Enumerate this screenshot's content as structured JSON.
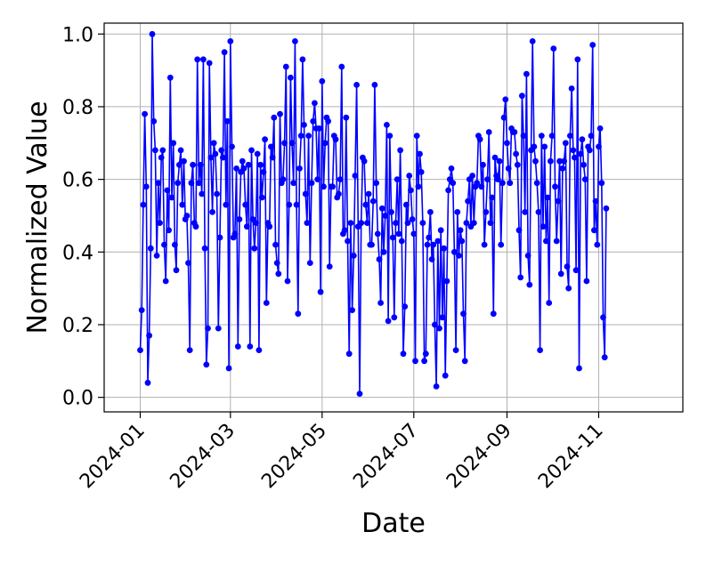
{
  "chart_data": {
    "type": "line",
    "title": "",
    "xlabel": "Date",
    "ylabel": "Normalized Value",
    "grid": true,
    "legend": "none",
    "x_ticks": [
      "2024-01",
      "2024-03",
      "2024-05",
      "2024-07",
      "2024-09",
      "2024-11"
    ],
    "y_ticks": [
      "0.0",
      "0.2",
      "0.4",
      "0.6",
      "0.8",
      "1.0"
    ],
    "xlim": [
      "2023-12-08",
      "2024-12-27"
    ],
    "ylim": [
      -0.04,
      1.03
    ],
    "series": [
      {
        "color": "#0000ff",
        "marker": "circle",
        "start": "2024-01-01",
        "step_days": 1,
        "values": [
          0.13,
          0.24,
          0.53,
          0.78,
          0.58,
          0.04,
          0.17,
          0.41,
          1.0,
          0.76,
          0.68,
          0.39,
          0.59,
          0.48,
          0.66,
          0.68,
          0.42,
          0.32,
          0.57,
          0.46,
          0.88,
          0.55,
          0.7,
          0.42,
          0.35,
          0.59,
          0.64,
          0.68,
          0.53,
          0.65,
          0.49,
          0.5,
          0.37,
          0.13,
          0.59,
          0.64,
          0.48,
          0.47,
          0.93,
          0.59,
          0.64,
          0.56,
          0.93,
          0.41,
          0.09,
          0.19,
          0.92,
          0.66,
          0.51,
          0.7,
          0.67,
          0.56,
          0.19,
          0.44,
          0.68,
          0.66,
          0.95,
          0.53,
          0.76,
          0.08,
          0.98,
          0.69,
          0.44,
          0.45,
          0.63,
          0.14,
          0.49,
          0.62,
          0.65,
          0.63,
          0.53,
          0.47,
          0.64,
          0.14,
          0.68,
          0.49,
          0.41,
          0.48,
          0.67,
          0.13,
          0.64,
          0.55,
          0.62,
          0.71,
          0.26,
          0.48,
          0.47,
          0.69,
          0.66,
          0.77,
          0.42,
          0.37,
          0.34,
          0.78,
          0.59,
          0.6,
          0.7,
          0.91,
          0.32,
          0.53,
          0.88,
          0.7,
          0.59,
          0.98,
          0.53,
          0.23,
          0.63,
          0.72,
          0.93,
          0.75,
          0.56,
          0.48,
          0.72,
          0.37,
          0.59,
          0.76,
          0.81,
          0.74,
          0.6,
          0.74,
          0.29,
          0.87,
          0.58,
          0.7,
          0.77,
          0.76,
          0.36,
          0.58,
          0.58,
          0.72,
          0.71,
          0.55,
          0.56,
          0.6,
          0.91,
          0.45,
          0.46,
          0.77,
          0.43,
          0.12,
          0.48,
          0.24,
          0.39,
          0.61,
          0.86,
          0.47,
          0.01,
          0.48,
          0.66,
          0.65,
          0.53,
          0.48,
          0.56,
          0.42,
          0.42,
          0.54,
          0.86,
          0.59,
          0.45,
          0.38,
          0.26,
          0.52,
          0.4,
          0.5,
          0.75,
          0.21,
          0.72,
          0.51,
          0.44,
          0.22,
          0.48,
          0.6,
          0.45,
          0.68,
          0.43,
          0.12,
          0.25,
          0.53,
          0.48,
          0.61,
          0.57,
          0.49,
          0.45,
          0.1,
          0.72,
          0.58,
          0.67,
          0.62,
          0.48,
          0.1,
          0.12,
          0.42,
          0.44,
          0.51,
          0.38,
          0.42,
          0.2,
          0.03,
          0.43,
          0.19,
          0.46,
          0.22,
          0.41,
          0.06,
          0.32,
          0.57,
          0.6,
          0.63,
          0.59,
          0.4,
          0.13,
          0.51,
          0.39,
          0.46,
          0.43,
          0.23,
          0.1,
          0.48,
          0.54,
          0.6,
          0.47,
          0.61,
          0.48,
          0.58,
          0.59,
          0.72,
          0.71,
          0.58,
          0.64,
          0.42,
          0.51,
          0.6,
          0.73,
          0.48,
          0.55,
          0.23,
          0.66,
          0.61,
          0.6,
          0.65,
          0.42,
          0.59,
          0.77,
          0.82,
          0.7,
          0.63,
          0.59,
          0.74,
          0.73,
          0.73,
          0.67,
          0.64,
          0.46,
          0.33,
          0.83,
          0.72,
          0.51,
          0.89,
          0.39,
          0.31,
          0.68,
          0.98,
          0.69,
          0.65,
          0.59,
          0.51,
          0.13,
          0.72,
          0.47,
          0.69,
          0.43,
          0.55,
          0.26,
          0.65,
          0.72,
          0.96,
          0.58,
          0.43,
          0.54,
          0.65,
          0.34,
          0.63,
          0.65,
          0.7,
          0.36,
          0.3,
          0.72,
          0.85,
          0.68,
          0.66,
          0.35,
          0.93,
          0.08,
          0.67,
          0.71,
          0.64,
          0.6,
          0.32,
          0.69,
          0.68,
          0.72,
          0.97,
          0.46,
          0.54,
          0.42,
          0.69,
          0.74,
          0.59,
          0.22,
          0.11,
          0.52
        ]
      }
    ]
  }
}
